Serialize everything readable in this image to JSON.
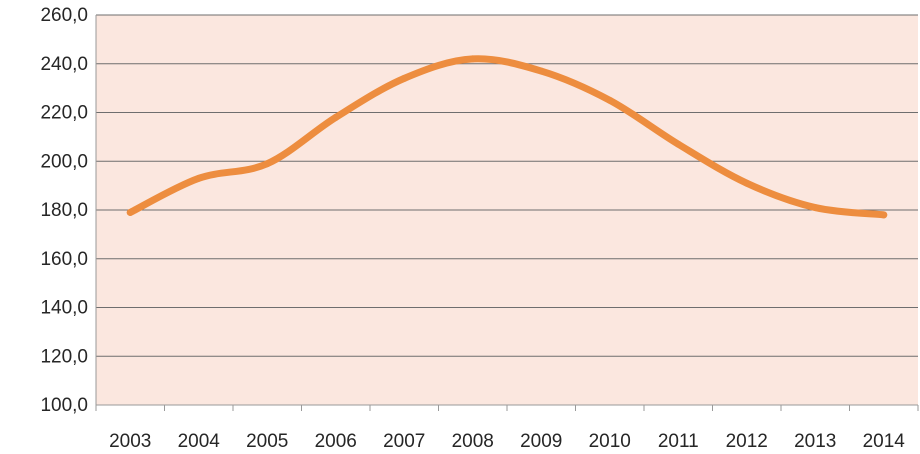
{
  "chart_data": {
    "type": "line",
    "title": "",
    "xlabel": "",
    "ylabel": "",
    "categories": [
      "2003",
      "2004",
      "2005",
      "2006",
      "2007",
      "2008",
      "2009",
      "2010",
      "2011",
      "2012",
      "2013",
      "2014"
    ],
    "series": [
      {
        "values": [
          179,
          193,
          199,
          218,
          234,
          242,
          237,
          225,
          207,
          191,
          181,
          178
        ]
      }
    ],
    "ylim": [
      100,
      260
    ],
    "yticks": [
      100,
      120,
      140,
      160,
      180,
      200,
      220,
      240,
      260
    ],
    "ytick_labels": [
      "100,0",
      "120,0",
      "140,0",
      "160,0",
      "180,0",
      "200,0",
      "220,0",
      "240,0",
      "260,0"
    ],
    "grid": true,
    "legend": "none",
    "colors": {
      "line": "#ED8D3F",
      "plot_background": "#FBE7DF",
      "gridline": "#6E6E6E",
      "axis": "#9A9A9A",
      "text": "#262626"
    }
  }
}
